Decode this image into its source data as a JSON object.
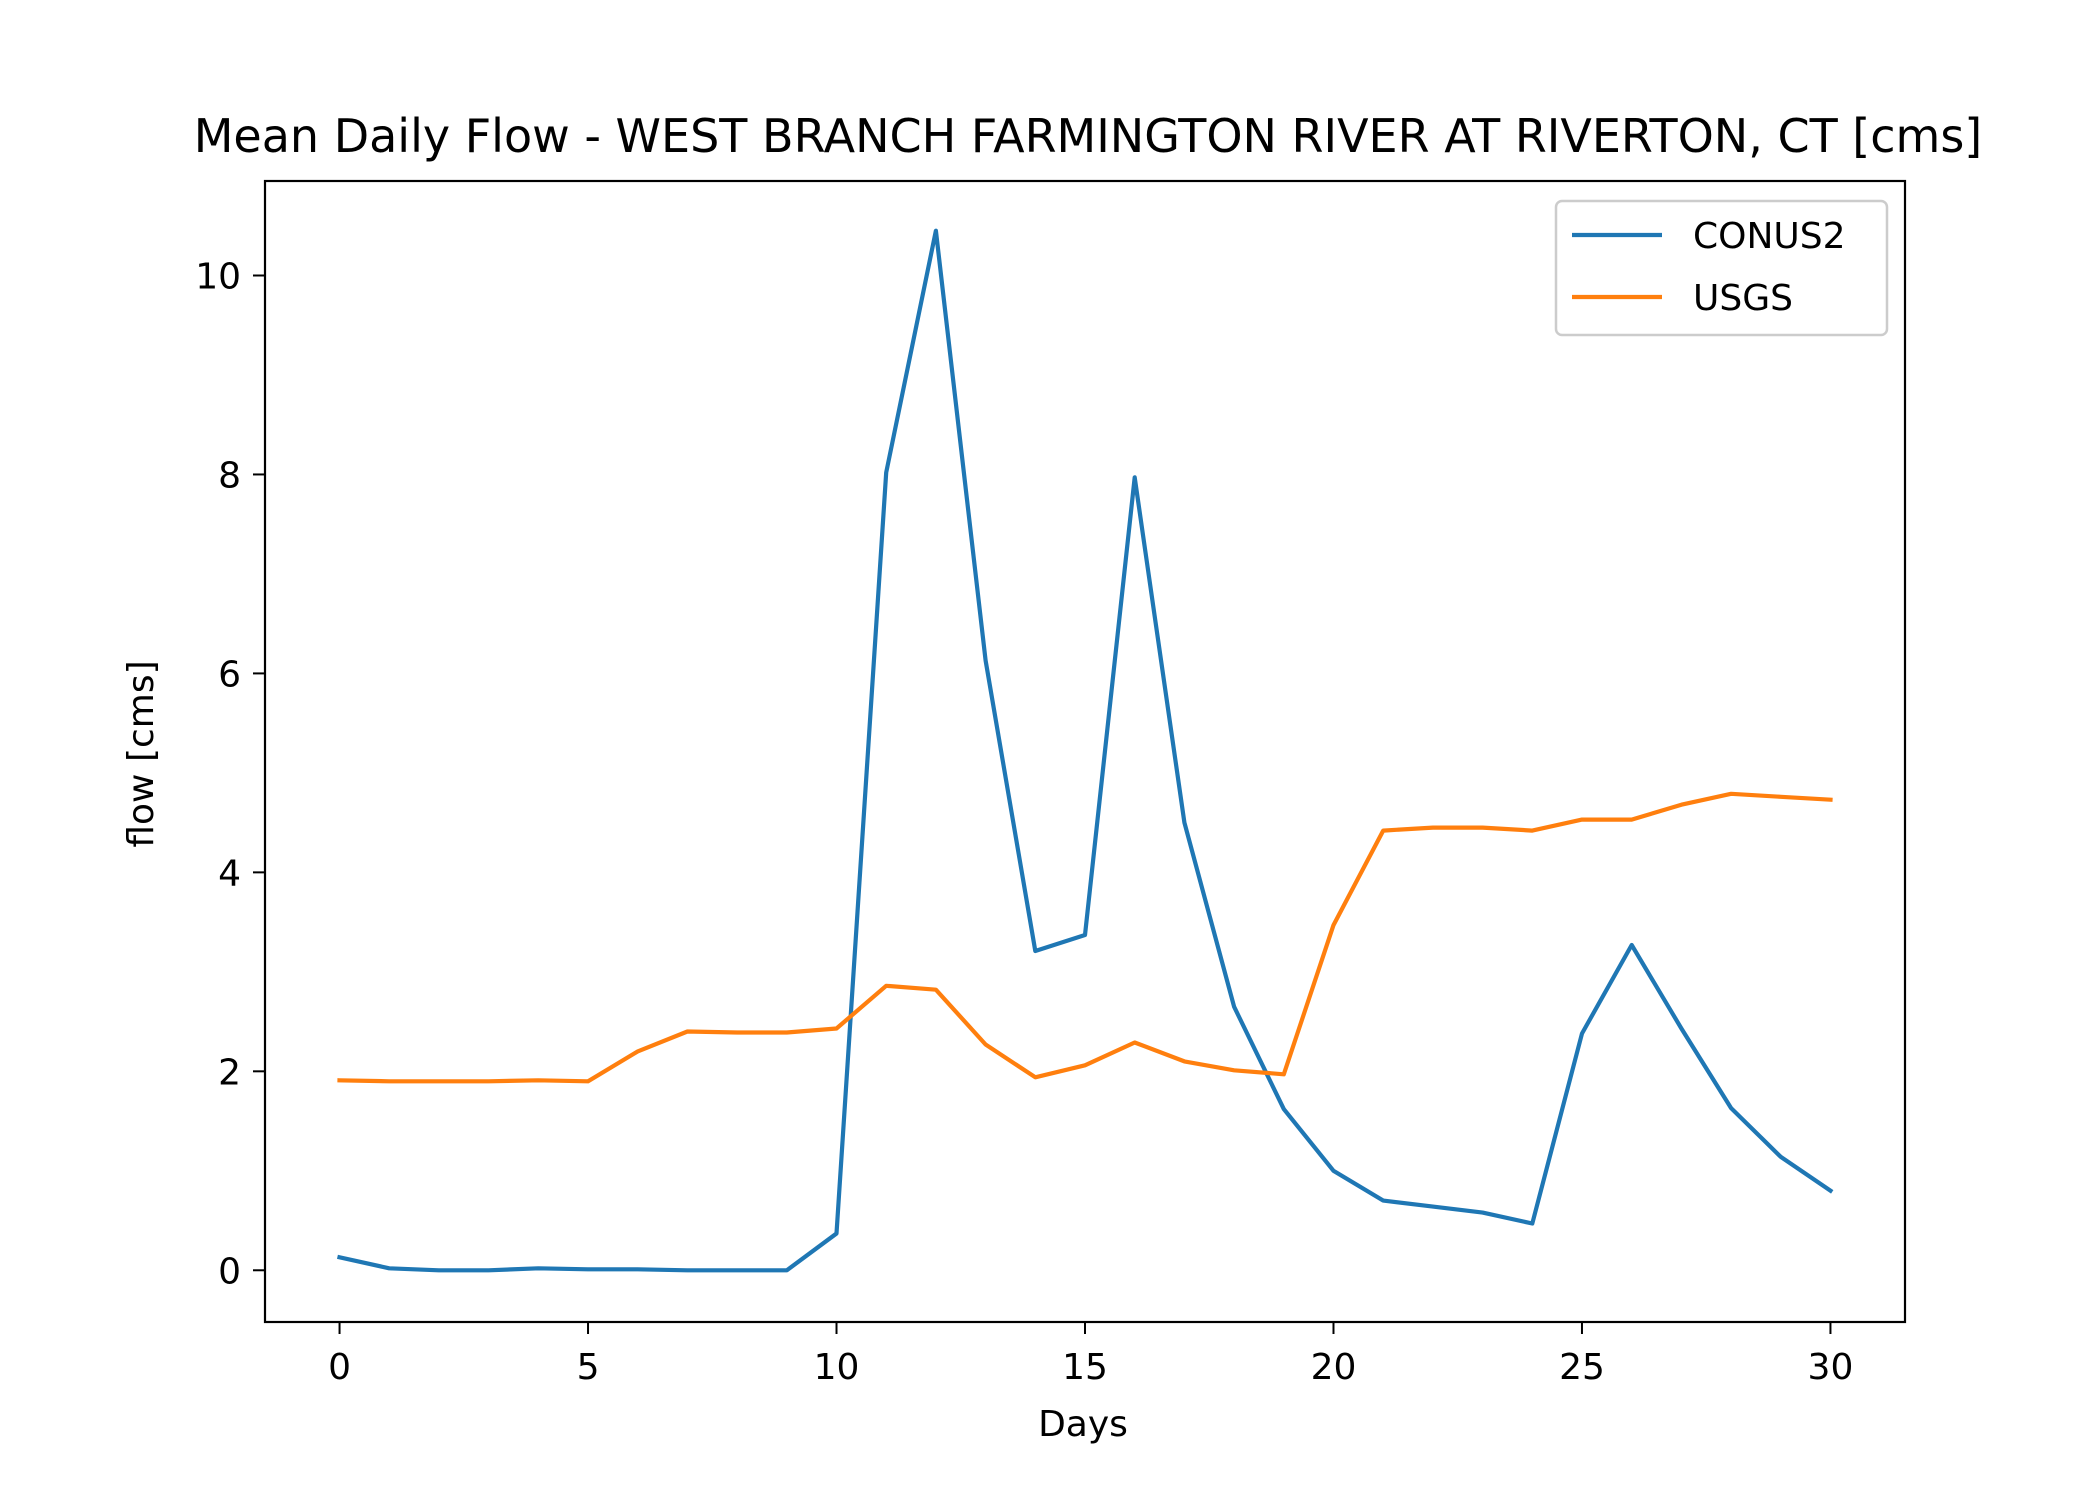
{
  "chart_data": {
    "type": "line",
    "title": "Mean Daily Flow - WEST BRANCH FARMINGTON RIVER AT RIVERTON, CT [cms]",
    "xlabel": "Days",
    "ylabel": "flow [cms]",
    "xlim": [
      -1.5,
      31.5
    ],
    "ylim": [
      -0.52,
      10.95
    ],
    "xticks": [
      0,
      5,
      10,
      15,
      20,
      25,
      30
    ],
    "yticks": [
      0,
      2,
      4,
      6,
      8,
      10
    ],
    "grid": false,
    "legend_position": "upper right",
    "series": [
      {
        "name": "CONUS2",
        "color": "#1f77b4",
        "x": [
          0,
          1,
          2,
          3,
          4,
          5,
          6,
          7,
          8,
          9,
          10,
          11,
          12,
          13,
          14,
          15,
          16,
          17,
          18,
          19,
          20,
          21,
          22,
          23,
          24,
          25,
          26,
          27,
          28,
          29,
          30
        ],
        "values": [
          0.13,
          0.02,
          0.0,
          0.0,
          0.02,
          0.01,
          0.01,
          0.0,
          0.0,
          0.0,
          0.37,
          8.02,
          10.45,
          6.13,
          3.21,
          3.37,
          7.97,
          4.5,
          2.65,
          1.62,
          1.0,
          0.7,
          0.64,
          0.58,
          0.47,
          2.38,
          3.27,
          2.43,
          1.63,
          1.14,
          0.8
        ]
      },
      {
        "name": "USGS",
        "color": "#ff7f0e",
        "x": [
          0,
          1,
          2,
          3,
          4,
          5,
          6,
          7,
          8,
          9,
          10,
          11,
          12,
          13,
          14,
          15,
          16,
          17,
          18,
          19,
          20,
          21,
          22,
          23,
          24,
          25,
          26,
          27,
          28,
          29,
          30
        ],
        "values": [
          1.91,
          1.9,
          1.9,
          1.9,
          1.91,
          1.9,
          2.2,
          2.4,
          2.39,
          2.39,
          2.43,
          2.86,
          2.82,
          2.27,
          1.94,
          2.06,
          2.29,
          2.1,
          2.01,
          1.97,
          3.47,
          4.42,
          4.45,
          4.45,
          4.42,
          4.53,
          4.53,
          4.68,
          4.79,
          4.76,
          4.73
        ]
      }
    ]
  }
}
